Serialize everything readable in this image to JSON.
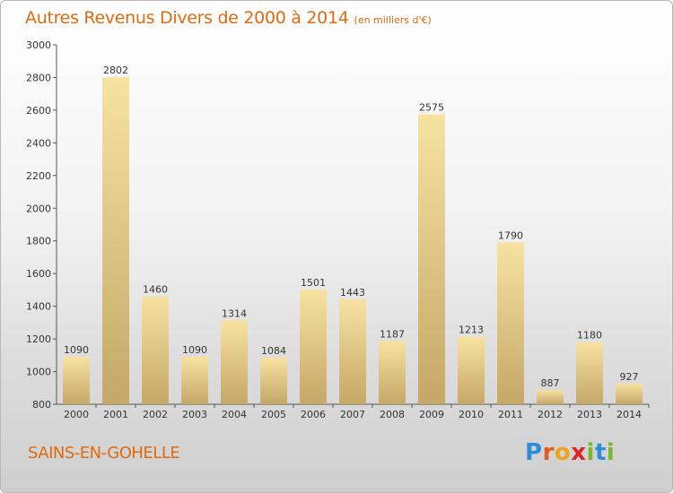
{
  "title": {
    "main": "Autres Revenus Divers de 2000 à 2014",
    "unit": "(en milliers d'€)"
  },
  "location": "SAINS-EN-GOHELLE",
  "logo": {
    "letters": [
      "P",
      "r",
      "o",
      "x",
      "i",
      "t",
      "i"
    ],
    "colors": [
      "#2a8fd6",
      "#e25a1c",
      "#f0a21a",
      "#e02424",
      "#79b829",
      "#2a8fd6",
      "#79b829"
    ]
  },
  "colors": {
    "accent": "#e06a10",
    "bar_light": "#f7e2a2",
    "bar_dark": "#c5a767"
  },
  "chart_data": {
    "type": "bar",
    "categories": [
      "2000",
      "2001",
      "2002",
      "2003",
      "2004",
      "2005",
      "2006",
      "2007",
      "2008",
      "2009",
      "2010",
      "2011",
      "2012",
      "2013",
      "2014"
    ],
    "values": [
      1090,
      2802,
      1460,
      1090,
      1314,
      1084,
      1501,
      1443,
      1187,
      2575,
      1213,
      1790,
      887,
      1180,
      927
    ],
    "ylim": [
      800,
      3000
    ],
    "yticks": [
      800,
      1000,
      1200,
      1400,
      1600,
      1800,
      2000,
      2200,
      2400,
      2600,
      2800,
      3000
    ],
    "grid": false,
    "xlabel": "",
    "ylabel": ""
  }
}
